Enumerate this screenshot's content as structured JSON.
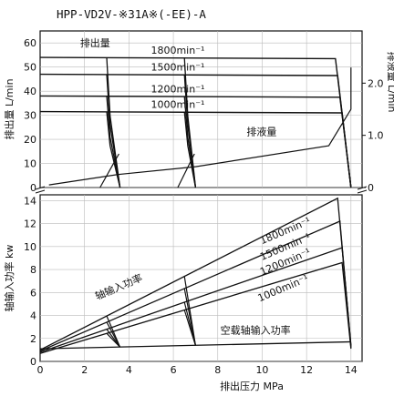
{
  "chart_data": [
    {
      "type": "line",
      "title": "HPP-VD2V-※31A※(-EE)-A",
      "ylabel": "排出量 L/min",
      "y2label": "排液量 L/min",
      "xlim": [
        0,
        14.5
      ],
      "ylim": [
        0,
        65
      ],
      "y2lim": [
        0,
        3.0
      ],
      "yticks": [
        0,
        10,
        20,
        30,
        40,
        50,
        60
      ],
      "y2ticks": [
        "0",
        "1.0",
        "2.0"
      ],
      "y2tick_values": [
        0,
        1.0,
        2.0
      ],
      "series_label": "排出量",
      "drain_label": "排液量",
      "series": [
        {
          "name": "1800min⁻¹",
          "x": [
            0,
            13.3,
            14.0
          ],
          "y": [
            54,
            53.5,
            0
          ]
        },
        {
          "name": "1500min⁻¹",
          "x": [
            0,
            13.4,
            14.0
          ],
          "y": [
            47,
            46.5,
            0
          ]
        },
        {
          "name": "1200min⁻¹",
          "x": [
            0,
            13.5,
            14.0
          ],
          "y": [
            38,
            37.5,
            0
          ]
        },
        {
          "name": "1000min⁻¹",
          "x": [
            0,
            13.6,
            14.0
          ],
          "y": [
            31.5,
            31,
            0
          ]
        },
        {
          "name": "排液量",
          "axis": "y2",
          "x": [
            0.4,
            3.5,
            7.0,
            13.0,
            14.0,
            14.0
          ],
          "y": [
            0.05,
            0.25,
            0.4,
            0.8,
            1.5,
            2.3
          ]
        }
      ],
      "cutoff_groups": [
        {
          "x_start": 3.0,
          "x_end": 3.6
        },
        {
          "x_start": 6.5,
          "x_end": 7.0
        }
      ]
    },
    {
      "type": "line",
      "ylabel": "轴输入功率 kw",
      "xlabel": "排出压力 MPa",
      "xlim": [
        0,
        14.5
      ],
      "ylim": [
        0,
        14.5
      ],
      "xticks": [
        0,
        2,
        4,
        6,
        8,
        10,
        12,
        14
      ],
      "yticks": [
        0,
        2,
        4,
        6,
        8,
        10,
        12,
        14
      ],
      "series_label": "轴输入功率",
      "noload_label": "空载轴输入功率",
      "series": [
        {
          "name": "1800min⁻¹",
          "x": [
            0,
            13.4,
            14.0
          ],
          "y": [
            1.0,
            14.2,
            1.4
          ]
        },
        {
          "name": "1500min⁻¹",
          "x": [
            0,
            13.5,
            14.0
          ],
          "y": [
            0.9,
            12.2,
            1.3
          ]
        },
        {
          "name": "1200min⁻¹",
          "x": [
            0,
            13.6,
            14.0
          ],
          "y": [
            0.8,
            9.9,
            1.2
          ]
        },
        {
          "name": "1000min⁻¹",
          "x": [
            0,
            13.6,
            14.0
          ],
          "y": [
            0.7,
            8.6,
            1.1
          ]
        },
        {
          "name": "空载轴输入功率",
          "x": [
            0,
            14.0
          ],
          "y": [
            1.1,
            1.7
          ]
        }
      ]
    }
  ]
}
